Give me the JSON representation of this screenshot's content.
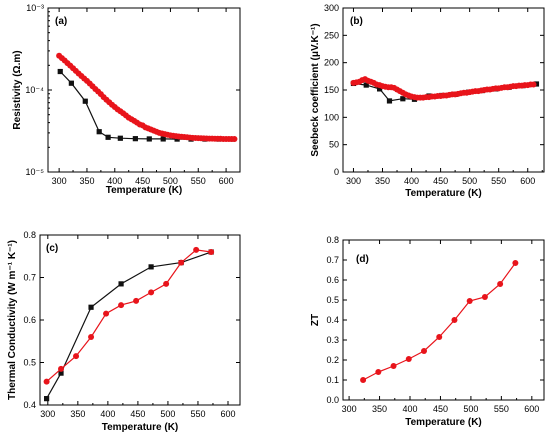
{
  "colors": {
    "red": "#e8141b",
    "black": "#111111"
  },
  "chart_data": [
    {
      "panel": "(a)",
      "type": "scatter",
      "xlabel": "Temperature (K)",
      "ylabel": "Resistivity (Ω.m)",
      "xlim": [
        280,
        625
      ],
      "xticks": [
        "300",
        "350",
        "400",
        "450",
        "500",
        "550",
        "600"
      ],
      "ylim": [
        1e-05,
        0.001
      ],
      "yscale": "log",
      "yticks": [
        "10⁻⁵",
        "10⁻⁴",
        "10⁻³"
      ],
      "series": [
        {
          "color": "red",
          "marker": "circle",
          "x": [
            300,
            305,
            310,
            315,
            320,
            325,
            330,
            335,
            340,
            345,
            350,
            355,
            360,
            365,
            370,
            375,
            380,
            385,
            390,
            395,
            400,
            405,
            410,
            415,
            420,
            425,
            430,
            435,
            440,
            445,
            450,
            455,
            460,
            465,
            470,
            475,
            480,
            485,
            490,
            495,
            500,
            505,
            510,
            515,
            520,
            525,
            530,
            535,
            540,
            545,
            550,
            555,
            560,
            565,
            570,
            575,
            580,
            585,
            590,
            595,
            600,
            605,
            610,
            615
          ],
          "y": [
            0.000262,
            0.000245,
            0.000229,
            0.000213,
            0.000198,
            0.000184,
            0.000171,
            0.000159,
            0.000148,
            0.000138,
            0.000129,
            0.00012,
            0.000111,
            0.000103,
            9.6e-05,
            8.9e-05,
            8.2e-05,
            7.6e-05,
            7.1e-05,
            6.6e-05,
            6.2e-05,
            5.8e-05,
            5.5e-05,
            5.2e-05,
            4.9e-05,
            4.6e-05,
            4.4e-05,
            4.2e-05,
            4e-05,
            3.8e-05,
            3.7e-05,
            3.5e-05,
            3.4e-05,
            3.3e-05,
            3.2e-05,
            3.1e-05,
            3e-05,
            2.95e-05,
            2.9e-05,
            2.85e-05,
            2.8e-05,
            2.77e-05,
            2.74e-05,
            2.71e-05,
            2.69e-05,
            2.67e-05,
            2.65e-05,
            2.63e-05,
            2.61e-05,
            2.6e-05,
            2.59e-05,
            2.58e-05,
            2.57e-05,
            2.56e-05,
            2.55e-05,
            2.55e-05,
            2.54e-05,
            2.54e-05,
            2.54e-05,
            2.53e-05,
            2.53e-05,
            2.53e-05,
            2.53e-05,
            2.53e-05
          ]
        },
        {
          "color": "black",
          "marker": "square",
          "x": [
            302,
            322,
            347,
            372,
            388,
            410,
            437,
            462,
            487,
            512,
            537,
            562,
            587,
            612
          ],
          "y": [
            0.000168,
            0.000121,
            7.3e-05,
            3.1e-05,
            2.65e-05,
            2.58e-05,
            2.55e-05,
            2.53e-05,
            2.53e-05,
            2.52e-05,
            2.52e-05,
            2.52e-05,
            2.52e-05,
            2.52e-05
          ]
        }
      ]
    },
    {
      "panel": "(b)",
      "type": "scatter",
      "xlabel": "Temperature (K)",
      "ylabel": "Seebeck coefficient (μV.K⁻¹)",
      "xlim": [
        282,
        628
      ],
      "xticks": [
        "300",
        "350",
        "400",
        "450",
        "500",
        "550",
        "600"
      ],
      "ylim": [
        0,
        300
      ],
      "yticks": [
        "0",
        "50",
        "100",
        "150",
        "200",
        "250",
        "300"
      ],
      "series": [
        {
          "color": "red",
          "marker": "circle",
          "x": [
            300,
            305,
            310,
            315,
            320,
            325,
            330,
            335,
            340,
            345,
            350,
            355,
            360,
            365,
            370,
            375,
            380,
            385,
            390,
            395,
            400,
            405,
            410,
            415,
            420,
            425,
            430,
            435,
            440,
            445,
            450,
            455,
            460,
            465,
            470,
            475,
            480,
            485,
            490,
            495,
            500,
            505,
            510,
            515,
            520,
            525,
            530,
            535,
            540,
            545,
            550,
            555,
            560,
            565,
            570,
            575,
            580,
            585,
            590,
            595,
            600,
            605,
            610
          ],
          "y": [
            163,
            164,
            165,
            168,
            170,
            167,
            165,
            163,
            160,
            159,
            157,
            156,
            155,
            155,
            154,
            151,
            148,
            145,
            142,
            140,
            138,
            137,
            136,
            136,
            136,
            137,
            137,
            138,
            138,
            139,
            139,
            140,
            140,
            141,
            142,
            142,
            143,
            144,
            145,
            145,
            146,
            147,
            148,
            148,
            149,
            150,
            151,
            151,
            152,
            153,
            153,
            154,
            155,
            155,
            156,
            157,
            157,
            158,
            158,
            159,
            159,
            160,
            160
          ]
        },
        {
          "color": "black",
          "marker": "square",
          "x": [
            300,
            322,
            345,
            362,
            385,
            405,
            430,
            452,
            475,
            498,
            522,
            545,
            568,
            592,
            615
          ],
          "y": [
            162,
            159,
            152,
            130,
            134,
            133,
            139,
            140,
            142,
            146,
            149,
            152,
            155,
            158,
            161
          ]
        }
      ]
    },
    {
      "panel": "(c)",
      "type": "line",
      "xlabel": "Temperature (K)",
      "ylabel": "Thermal Conductivity (W m⁻¹ K⁻¹)",
      "xlim": [
        287,
        620
      ],
      "xticks": [
        "300",
        "350",
        "400",
        "450",
        "500",
        "550",
        "600"
      ],
      "ylim": [
        0.4,
        0.8
      ],
      "yticks": [
        "0.4",
        "0.5",
        "0.6",
        "0.7",
        "0.8"
      ],
      "series": [
        {
          "color": "red",
          "marker": "circle",
          "x": [
            298,
            322,
            347,
            372,
            397,
            422,
            447,
            472,
            497,
            522,
            547,
            572
          ],
          "y": [
            0.455,
            0.485,
            0.515,
            0.56,
            0.615,
            0.635,
            0.645,
            0.665,
            0.685,
            0.735,
            0.765,
            0.76
          ]
        },
        {
          "color": "black",
          "marker": "square",
          "x": [
            298,
            322,
            372,
            422,
            472,
            522,
            572
          ],
          "y": [
            0.415,
            0.475,
            0.63,
            0.685,
            0.725,
            0.735,
            0.76
          ]
        }
      ]
    },
    {
      "panel": "(d)",
      "type": "line",
      "xlabel": "Temperature (K)",
      "ylabel": "ZT",
      "xlim": [
        290,
        620
      ],
      "xticks": [
        "300",
        "350",
        "400",
        "450",
        "500",
        "550",
        "600"
      ],
      "ylim": [
        0,
        0.8
      ],
      "yticks": [
        "0.0",
        "0.1",
        "0.2",
        "0.3",
        "0.4",
        "0.5",
        "0.6",
        "0.7",
        "0.8"
      ],
      "series": [
        {
          "color": "red",
          "marker": "circle",
          "x": [
            323,
            348,
            373,
            398,
            423,
            448,
            473,
            498,
            523,
            548,
            573
          ],
          "y": [
            0.1,
            0.14,
            0.17,
            0.205,
            0.245,
            0.315,
            0.4,
            0.495,
            0.515,
            0.58,
            0.685
          ]
        }
      ]
    }
  ]
}
